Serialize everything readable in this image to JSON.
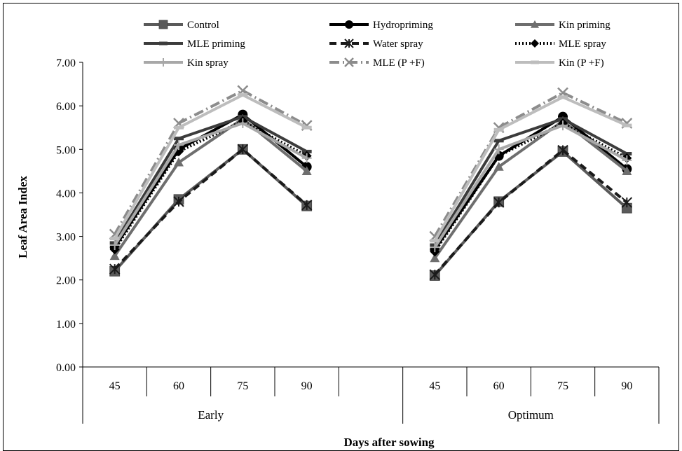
{
  "chart_data": {
    "type": "line",
    "xlabel": "Days after sowing",
    "ylabel": "Leaf Area Index",
    "ylim": [
      0,
      7
    ],
    "yticks": [
      "0.00",
      "1.00",
      "2.00",
      "3.00",
      "4.00",
      "5.00",
      "6.00",
      "7.00"
    ],
    "groups": [
      {
        "name": "Early",
        "categories": [
          "45",
          "60",
          "75",
          "90"
        ]
      },
      {
        "name": "Optimum",
        "categories": [
          "45",
          "60",
          "75",
          "90"
        ]
      }
    ],
    "grid": false,
    "legend_position": "top",
    "series": [
      {
        "name": "Control",
        "color": "#5a5a5a",
        "dash": "",
        "marker": "square",
        "values": [
          [
            2.2,
            3.85,
            5.0,
            3.7
          ],
          [
            2.1,
            3.8,
            4.95,
            3.65
          ]
        ]
      },
      {
        "name": "Hydropriming",
        "color": "#000000",
        "dash": "",
        "marker": "circle",
        "values": [
          [
            2.75,
            5.0,
            5.8,
            4.6
          ],
          [
            2.7,
            4.85,
            5.75,
            4.55
          ]
        ]
      },
      {
        "name": "Kin priming",
        "color": "#6e6e6e",
        "dash": "",
        "marker": "triangle",
        "values": [
          [
            2.55,
            4.7,
            5.7,
            4.5
          ],
          [
            2.5,
            4.6,
            5.65,
            4.5
          ]
        ]
      },
      {
        "name": "MLE priming",
        "color": "#3c3c3c",
        "dash": "",
        "marker": "dash",
        "values": [
          [
            2.85,
            5.25,
            5.75,
            4.95
          ],
          [
            2.8,
            5.2,
            5.7,
            4.9
          ]
        ]
      },
      {
        "name": "Water spray",
        "color": "#1a1a1a",
        "dash": "10,6",
        "marker": "star",
        "values": [
          [
            2.25,
            3.8,
            5.0,
            3.72
          ],
          [
            2.12,
            3.78,
            4.98,
            3.78
          ]
        ]
      },
      {
        "name": "MLE spray",
        "color": "#000000",
        "dash": "2,3",
        "marker": "diamond",
        "values": [
          [
            2.7,
            4.95,
            5.65,
            4.85
          ],
          [
            2.65,
            4.85,
            5.6,
            4.8
          ]
        ]
      },
      {
        "name": "Kin spray",
        "color": "#a8a8a8",
        "dash": "",
        "marker": "plus",
        "values": [
          [
            2.8,
            5.1,
            5.6,
            4.8
          ],
          [
            2.75,
            5.0,
            5.55,
            4.75
          ]
        ]
      },
      {
        "name": "MLE (P +F)",
        "color": "#8c8c8c",
        "dash": "14,5,2,5",
        "marker": "x",
        "values": [
          [
            3.05,
            5.6,
            6.35,
            5.55
          ],
          [
            3.0,
            5.5,
            6.3,
            5.6
          ]
        ]
      },
      {
        "name": "Kin (P +F)",
        "color": "#bdbdbd",
        "dash": "",
        "marker": "dash",
        "values": [
          [
            2.95,
            5.5,
            6.25,
            5.5
          ],
          [
            2.9,
            5.45,
            6.2,
            5.55
          ]
        ]
      }
    ]
  }
}
